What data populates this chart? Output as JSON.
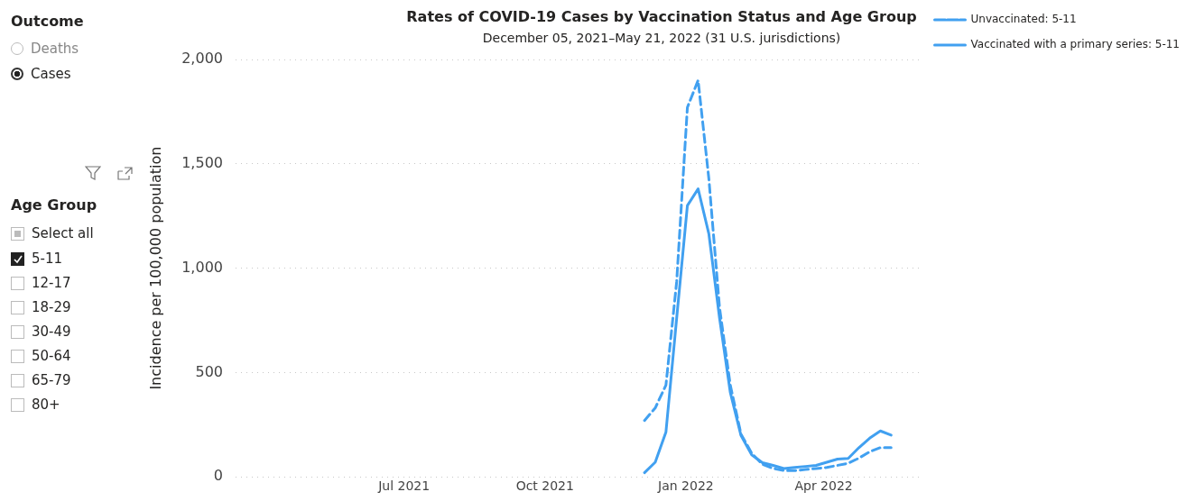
{
  "chart_data": {
    "type": "line",
    "title": "Rates of COVID-19 Cases by Vaccination Status and Age Group",
    "subtitle": "December 05, 2021–May 21, 2022 (31 U.S. jurisdictions)",
    "ylabel": "Incidence per 100,000 population",
    "x": [
      "2021-12-05",
      "2021-12-12",
      "2021-12-19",
      "2021-12-26",
      "2022-01-02",
      "2022-01-09",
      "2022-01-16",
      "2022-01-23",
      "2022-01-30",
      "2022-02-06",
      "2022-02-13",
      "2022-02-20",
      "2022-02-27",
      "2022-03-06",
      "2022-03-13",
      "2022-03-20",
      "2022-03-27",
      "2022-04-03",
      "2022-04-10",
      "2022-04-17",
      "2022-04-24",
      "2022-05-01",
      "2022-05-08",
      "2022-05-15"
    ],
    "series": [
      {
        "name": "Unvaccinated: 5-11",
        "color": "#41a0f0",
        "line_style": "dashed",
        "values": [
          270,
          330,
          440,
          935,
          1770,
          1900,
          1430,
          810,
          440,
          205,
          113,
          60,
          40,
          30,
          30,
          35,
          40,
          45,
          55,
          65,
          90,
          120,
          140,
          140
        ]
      },
      {
        "name": "Vaccinated with a primary series: 5-11",
        "color": "#41a0f0",
        "line_style": "solid",
        "values": [
          20,
          70,
          215,
          760,
          1300,
          1380,
          1165,
          760,
          405,
          198,
          105,
          68,
          55,
          40,
          45,
          50,
          55,
          70,
          85,
          88,
          140,
          185,
          220,
          200
        ]
      }
    ],
    "xlim": [
      "2021-03-13",
      "2022-06-03"
    ],
    "xticks": [
      {
        "value": "2021-07-01",
        "label": "Jul 2021"
      },
      {
        "value": "2021-10-01",
        "label": "Oct 2021"
      },
      {
        "value": "2022-01-01",
        "label": "Jan 2022"
      },
      {
        "value": "2022-04-01",
        "label": "Apr 2022"
      }
    ],
    "ylim": [
      0,
      2000
    ],
    "yticks": [
      0,
      500,
      {
        "value": 1000,
        "label": "1,000"
      },
      {
        "value": 1500,
        "label": "1,500"
      },
      {
        "value": 2000,
        "label": "2,000"
      }
    ],
    "grid": "y",
    "legend": "top right",
    "marker": "none",
    "annotations": [
      "Outcome",
      "Deaths",
      "Cases",
      "Age Group",
      "Select all",
      "5-11",
      "12-17",
      "18-29",
      "30-49",
      "50-64",
      "65-79",
      "80+"
    ]
  }
}
